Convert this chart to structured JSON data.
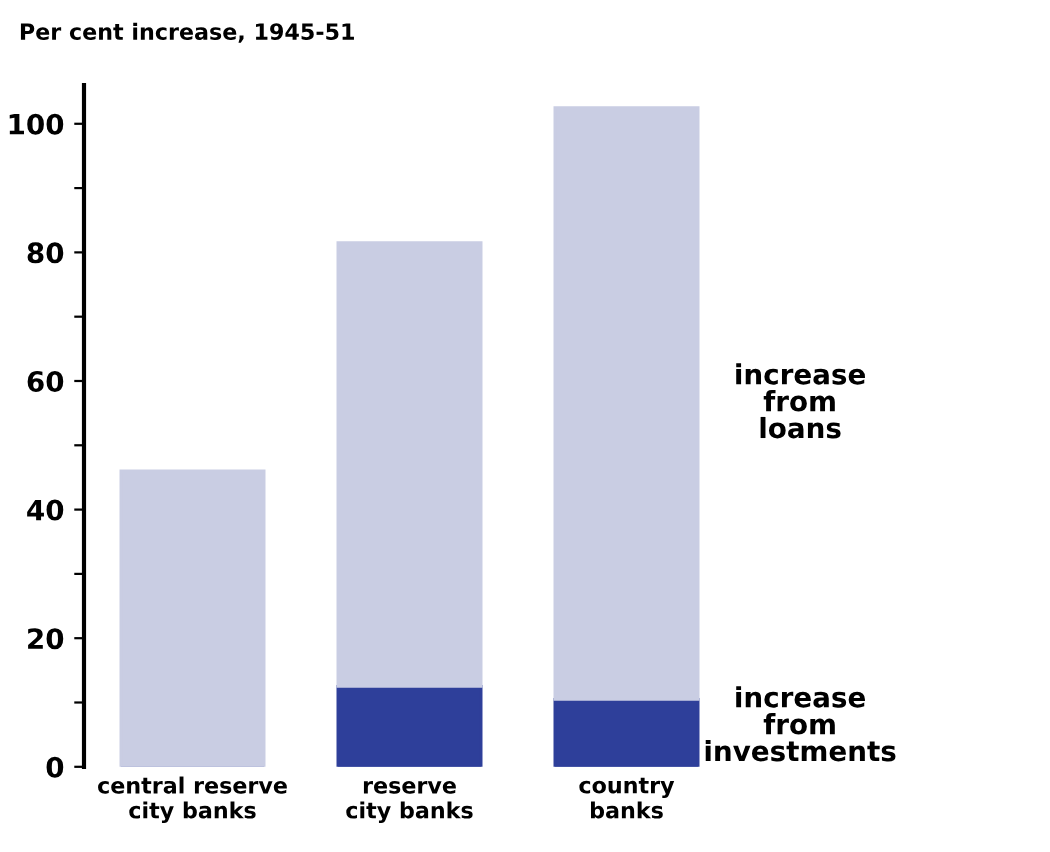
{
  "chart_data": {
    "type": "bar",
    "stacked": true,
    "ylabel": "Per cent increase, 1945-51",
    "categories": [
      "central reserve\ncity banks",
      "reserve\ncity banks",
      "country\nbanks"
    ],
    "series": [
      {
        "name": "increase\nfrom\ninvestments",
        "color": "#2e3f9a",
        "values": [
          0,
          12.5,
          10.5
        ]
      },
      {
        "name": "increase\nfrom\nloans",
        "color": "#c9cde3",
        "values": [
          46,
          69,
          92
        ]
      }
    ],
    "ylim": [
      0,
      106
    ],
    "yticks": [
      0,
      {
        "value": 10,
        "label": null
      },
      20,
      {
        "value": 30,
        "label": null
      },
      40,
      {
        "value": 50,
        "label": null
      },
      60,
      {
        "value": 70,
        "label": null
      },
      80,
      {
        "value": 90,
        "label": null
      },
      100
    ],
    "grid": false,
    "legend": false
  }
}
